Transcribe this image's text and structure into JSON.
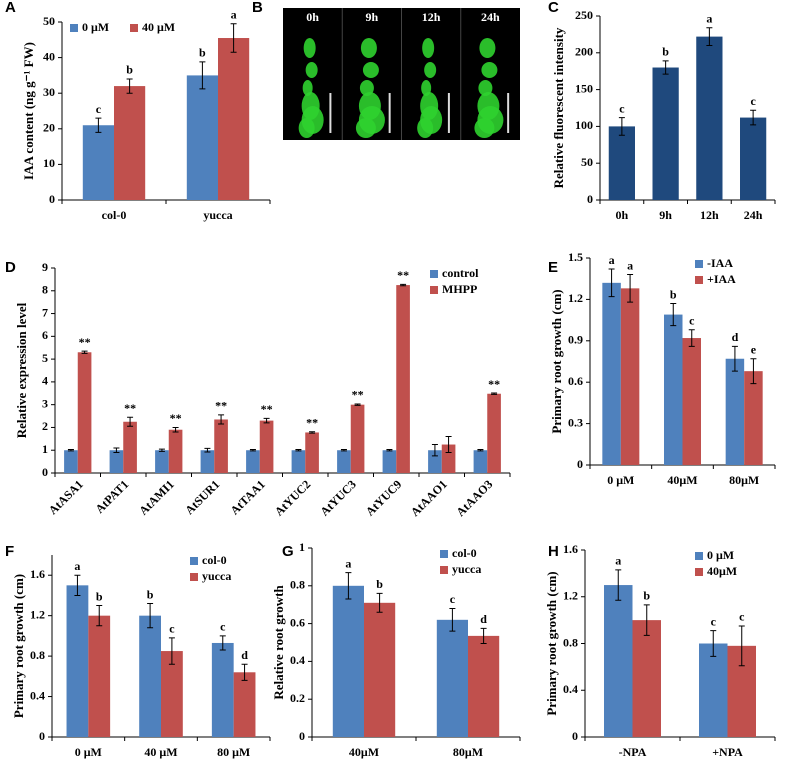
{
  "chart_data": [
    {
      "type": "bar",
      "panel": "A",
      "ylabel": "IAA content (ng g⁻¹ FW)",
      "ylim": [
        0,
        50
      ],
      "yticks": [
        0,
        10,
        20,
        30,
        40,
        50
      ],
      "legend": "upper left",
      "categories": [
        "col-0",
        "yucca"
      ],
      "series": [
        {
          "name": "0 μM",
          "color": "#4f81bd",
          "values": [
            21,
            35
          ],
          "errors": [
            2,
            3.8
          ],
          "letters": [
            "c",
            "b"
          ]
        },
        {
          "name": "40 μM",
          "color": "#c0504d",
          "values": [
            32,
            45.5
          ],
          "errors": [
            2,
            4
          ],
          "letters": [
            "b",
            "a"
          ]
        }
      ]
    },
    {
      "type": "image",
      "panel": "B",
      "categories": [
        "0h",
        "9h",
        "12h",
        "24h"
      ]
    },
    {
      "type": "bar",
      "panel": "C",
      "ylabel": "Relative fluorescent intensity",
      "ylim": [
        0,
        250
      ],
      "yticks": [
        0,
        50,
        100,
        150,
        200,
        250
      ],
      "categories": [
        "0h",
        "9h",
        "12h",
        "24h"
      ],
      "series": [
        {
          "color": "#1f497d",
          "values": [
            100,
            180,
            222,
            112
          ],
          "errors": [
            12,
            9,
            12,
            10
          ],
          "letters": [
            "c",
            "b",
            "a",
            "c"
          ]
        }
      ]
    },
    {
      "type": "bar",
      "panel": "D",
      "ylabel": "Relative expression level",
      "ylim": [
        0,
        9
      ],
      "yticks": [
        0,
        1,
        2,
        3,
        4,
        5,
        6,
        7,
        8,
        9
      ],
      "legend": "upper right",
      "rotate_categories": true,
      "categories": [
        "AtASA1",
        "AtPAT1",
        "AtAMI1",
        "AtSUR1",
        "AtTAA1",
        "AtYUC2",
        "AtYUC3",
        "AtYUC9",
        "AtAAO1",
        "AtAAO3"
      ],
      "series": [
        {
          "name": "control",
          "color": "#4f81bd",
          "values": [
            1,
            1,
            1,
            1,
            1,
            1,
            1,
            1,
            1,
            1
          ],
          "errors": [
            0.03,
            0.1,
            0.05,
            0.08,
            0.03,
            0.03,
            0.03,
            0.03,
            0.25,
            0.03
          ]
        },
        {
          "name": "MHPP",
          "color": "#c0504d",
          "values": [
            5.3,
            2.25,
            1.9,
            2.35,
            2.3,
            1.78,
            3.0,
            8.25,
            1.25,
            3.48
          ],
          "errors": [
            0.05,
            0.2,
            0.1,
            0.2,
            0.1,
            0.03,
            0.03,
            0.03,
            0.35,
            0.03
          ],
          "letters": [
            "**",
            "**",
            "**",
            "**",
            "**",
            "**",
            "**",
            "**",
            null,
            "**"
          ]
        }
      ]
    },
    {
      "type": "bar",
      "panel": "E",
      "ylabel": "Primary root growth (cm)",
      "ylim": [
        0,
        1.5
      ],
      "yticks": [
        0,
        0.3,
        0.6,
        0.9,
        1.2,
        1.5
      ],
      "legend": "upper right",
      "categories": [
        "0 μM",
        "40μM",
        "80μM"
      ],
      "series": [
        {
          "name": "-IAA",
          "color": "#4f81bd",
          "values": [
            1.32,
            1.09,
            0.77
          ],
          "errors": [
            0.1,
            0.08,
            0.09
          ],
          "letters": [
            "a",
            "b",
            "d"
          ]
        },
        {
          "name": "+IAA",
          "color": "#c0504d",
          "values": [
            1.28,
            0.92,
            0.68
          ],
          "errors": [
            0.1,
            0.06,
            0.09
          ],
          "letters": [
            "a",
            "c",
            "e"
          ]
        }
      ]
    },
    {
      "type": "bar",
      "panel": "F",
      "ylabel": "Primary root growth (cm)",
      "ylim": [
        0,
        1.8
      ],
      "yticks": [
        0,
        0.4,
        0.8,
        1.2,
        1.6
      ],
      "legend": "upper right",
      "categories": [
        "0 μM",
        "40 μM",
        "80 μM"
      ],
      "series": [
        {
          "name": "col-0",
          "color": "#4f81bd",
          "values": [
            1.5,
            1.2,
            0.93
          ],
          "errors": [
            0.1,
            0.12,
            0.07
          ],
          "letters": [
            "a",
            "b",
            "c"
          ]
        },
        {
          "name": "yucca",
          "color": "#c0504d",
          "values": [
            1.2,
            0.85,
            0.64
          ],
          "errors": [
            0.1,
            0.13,
            0.08
          ],
          "letters": [
            "b",
            "c",
            "d"
          ]
        }
      ]
    },
    {
      "type": "bar",
      "panel": "G",
      "ylabel": "Relative root growth",
      "ylim": [
        0,
        1
      ],
      "yticks": [
        0,
        0.2,
        0.4,
        0.6,
        0.8,
        1
      ],
      "legend": "upper right",
      "categories": [
        "40μM",
        "80μM"
      ],
      "series": [
        {
          "name": "col-0",
          "color": "#4f81bd",
          "values": [
            0.8,
            0.62
          ],
          "errors": [
            0.07,
            0.06
          ],
          "letters": [
            "a",
            "c"
          ]
        },
        {
          "name": "yucca",
          "color": "#c0504d",
          "values": [
            0.71,
            0.535
          ],
          "errors": [
            0.05,
            0.04
          ],
          "letters": [
            "b",
            "d"
          ]
        }
      ]
    },
    {
      "type": "bar",
      "panel": "H",
      "ylabel": "Primary root growth (cm)",
      "ylim": [
        0,
        1.6
      ],
      "yticks": [
        0,
        0.4,
        0.8,
        1.2,
        1.6
      ],
      "legend": "upper right",
      "categories": [
        "-NPA",
        "+NPA"
      ],
      "series": [
        {
          "name": "0 μM",
          "color": "#4f81bd",
          "values": [
            1.3,
            0.8
          ],
          "errors": [
            0.13,
            0.11
          ],
          "letters": [
            "a",
            "c"
          ]
        },
        {
          "name": "40μM",
          "color": "#c0504d",
          "values": [
            1.0,
            0.78
          ],
          "errors": [
            0.13,
            0.17
          ],
          "letters": [
            "b",
            "c"
          ]
        }
      ]
    }
  ]
}
